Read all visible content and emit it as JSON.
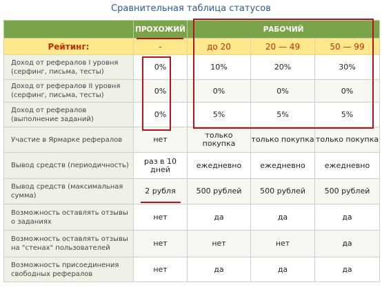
{
  "title": "Сравнительная таблица статусов",
  "header": {
    "blank": "",
    "col1": "ПРОХОЖИЙ",
    "col2": "РАБОЧИЙ"
  },
  "rating": {
    "label": "Рейтинг:",
    "c1": "-",
    "c2": "до 20",
    "c3": "20 — 49",
    "c4": "50 — 99"
  },
  "rows": [
    {
      "label": "Доход от рефералов I уровня (серфинг, письма, тесты)",
      "c1": "0%",
      "c2": "10%",
      "c3": "20%",
      "c4": "30%"
    },
    {
      "label": "Доход от рефералов II уровня (серфинг, письма, тесты)",
      "c1": "0%",
      "c2": "0%",
      "c3": "0%",
      "c4": "0%"
    },
    {
      "label": "Доход от рефералов (выполнение заданий)",
      "c1": "0%",
      "c2": "5%",
      "c3": "5%",
      "c4": "5%"
    },
    {
      "label": "Участие в Ярмарке рефералов",
      "c1": "нет",
      "c2": "только покупка",
      "c3": "только покупка",
      "c4": "только покупка"
    },
    {
      "label": "Вывод средств (периодичность)",
      "c1": "раз в 10 дней",
      "c2": "ежедневно",
      "c3": "ежедневно",
      "c4": "ежедневно"
    },
    {
      "label": "Вывод средств (максимальная сумма)",
      "c1": "2 рубля",
      "c2": "500 рублей",
      "c3": "500 рублей",
      "c4": "500 рублей"
    },
    {
      "label": "Возможность оставлять отзывы о заданиях",
      "c1": "нет",
      "c2": "да",
      "c3": "да",
      "c4": "да"
    },
    {
      "label": "Возможность оставлять отзывы на \"стенах\" пользователей",
      "c1": "нет",
      "c2": "нет",
      "c3": "нет",
      "c4": "да"
    },
    {
      "label": "Возможность присоединения свободных рефералов",
      "c1": "нет",
      "c2": "да",
      "c3": "да",
      "c4": "да"
    }
  ],
  "colors": {
    "header_green": "#7aa34a",
    "rating_yellow": "#ffe88c",
    "rating_text": "#cc2a00",
    "highlight_red": "#b5131b",
    "title_blue": "#2e5a92"
  }
}
